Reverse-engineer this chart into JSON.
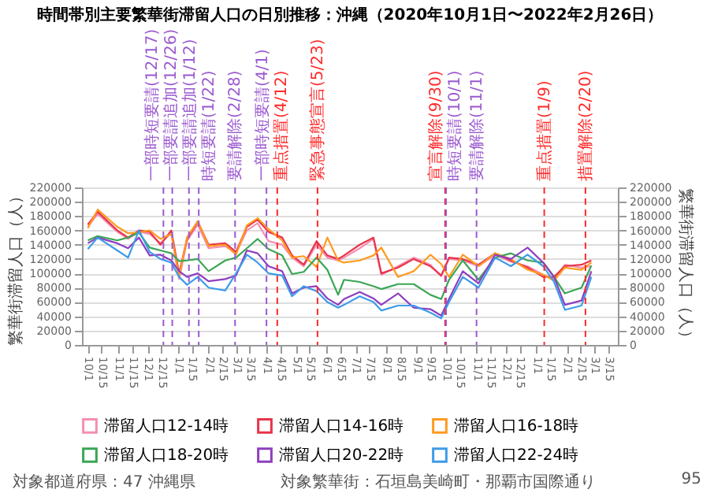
{
  "chart_data": {
    "type": "line",
    "title": "時間帯別主要繁華街滞留人口の日別推移：沖縄（2020年10月1日〜2022年2月26日）",
    "ylabel": "繁華街滞留人口（人）",
    "y2label": "繁華街滞留人口（人）",
    "x": [
      "2020-10-01",
      "2020-10-11",
      "2020-10-31",
      "2020-11-11",
      "2020-11-22",
      "2020-12-03",
      "2020-12-14",
      "2020-12-25",
      "2021-01-02",
      "2021-01-10",
      "2021-01-21",
      "2021-02-01",
      "2021-02-18",
      "2021-03-01",
      "2021-03-12",
      "2021-03-23",
      "2021-04-03",
      "2021-04-17",
      "2021-04-27",
      "2021-05-09",
      "2021-05-22",
      "2021-06-02",
      "2021-06-13",
      "2021-06-19",
      "2021-07-05",
      "2021-07-19",
      "2021-07-27",
      "2021-08-13",
      "2021-08-29",
      "2021-09-15",
      "2021-09-26",
      "2021-10-04",
      "2021-10-18",
      "2021-11-03",
      "2021-11-20",
      "2021-12-06",
      "2021-12-23",
      "2022-01-08",
      "2022-01-19",
      "2022-01-30",
      "2022-02-16",
      "2022-02-26"
    ],
    "series": [
      {
        "name": "滞留人口12-14時",
        "color": "#f48fb1",
        "values": [
          165000,
          183000,
          158000,
          148000,
          158000,
          155000,
          142000,
          156000,
          92000,
          145000,
          168000,
          135000,
          138000,
          128000,
          160000,
          170000,
          145000,
          140000,
          122000,
          110000,
          140000,
          122000,
          118000,
          122000,
          135000,
          148000,
          98000,
          110000,
          122000,
          112000,
          96000,
          120000,
          118000,
          110000,
          126000,
          116000,
          110000,
          98000,
          92000,
          112000,
          108000,
          110000
        ]
      },
      {
        "name": "滞留人口14-16時",
        "color": "#e8334a",
        "values": [
          168000,
          186000,
          160000,
          150000,
          160000,
          158000,
          140000,
          160000,
          100000,
          148000,
          172000,
          140000,
          142000,
          130000,
          165000,
          175000,
          158000,
          150000,
          125000,
          112000,
          145000,
          125000,
          120000,
          125000,
          140000,
          150000,
          100000,
          108000,
          120000,
          110000,
          97000,
          122000,
          120000,
          112000,
          128000,
          118000,
          108000,
          95000,
          95000,
          110000,
          112000,
          118000
        ]
      },
      {
        "name": "滞留人口16-18時",
        "color": "#ff9a1f",
        "values": [
          163000,
          189000,
          165000,
          156000,
          157000,
          160000,
          148000,
          155000,
          95000,
          150000,
          173000,
          138000,
          140000,
          126000,
          167000,
          177000,
          162000,
          146000,
          122000,
          124000,
          109000,
          150000,
          118000,
          115000,
          118000,
          125000,
          136000,
          95000,
          103000,
          126000,
          113000,
          95000,
          126000,
          110000,
          128000,
          120000,
          105000,
          98000,
          90000,
          108000,
          105000,
          115000
        ]
      },
      {
        "name": "滞留人口18-20時",
        "color": "#3aa655",
        "values": [
          146000,
          152000,
          146000,
          150000,
          157000,
          136000,
          132000,
          128000,
          117000,
          118000,
          120000,
          103000,
          118000,
          122000,
          135000,
          148000,
          134000,
          125000,
          99000,
          102000,
          122000,
          105000,
          70000,
          91000,
          88000,
          82000,
          78000,
          85000,
          85000,
          70000,
          64000,
          91000,
          118000,
          91000,
          122000,
          128000,
          118000,
          115000,
          95000,
          72000,
          80000,
          111000
        ]
      },
      {
        "name": "滞留人口20-22時",
        "color": "#8e3fbf",
        "values": [
          142000,
          150000,
          142000,
          135000,
          150000,
          125000,
          126000,
          118000,
          103000,
          95000,
          100000,
          89000,
          92000,
          97000,
          132000,
          128000,
          110000,
          103000,
          72000,
          80000,
          82000,
          65000,
          56000,
          64000,
          74000,
          65000,
          56000,
          72000,
          52000,
          50000,
          41000,
          64000,
          103000,
          86000,
          126000,
          120000,
          136000,
          115000,
          95000,
          56000,
          62000,
          103000
        ]
      },
      {
        "name": "滞留人口22-24時",
        "color": "#3d9be9",
        "values": [
          134000,
          150000,
          132000,
          122000,
          160000,
          130000,
          120000,
          115000,
          95000,
          84000,
          95000,
          80000,
          76000,
          100000,
          126000,
          115000,
          100000,
          97000,
          68000,
          82000,
          75000,
          60000,
          52000,
          56000,
          68000,
          60000,
          48000,
          55000,
          55000,
          45000,
          37000,
          60000,
          95000,
          80000,
          122000,
          110000,
          126000,
          110000,
          88000,
          49000,
          55000,
          95000
        ]
      }
    ],
    "xlim": [
      "2020-09-25",
      "2022-03-25"
    ],
    "xticks": [
      {
        "value": "2020-10-01",
        "label": "10/1"
      },
      {
        "value": "2020-10-15",
        "label": "10/15"
      },
      {
        "value": "2020-11-01",
        "label": "11/1"
      },
      {
        "value": "2020-11-15",
        "label": "11/15"
      },
      {
        "value": "2020-12-01",
        "label": "12/1"
      },
      {
        "value": "2020-12-15",
        "label": "12/15"
      },
      {
        "value": "2021-01-01",
        "label": "1/1"
      },
      {
        "value": "2021-01-15",
        "label": "1/15"
      },
      {
        "value": "2021-02-01",
        "label": "2/1"
      },
      {
        "value": "2021-02-15",
        "label": "2/15"
      },
      {
        "value": "2021-03-01",
        "label": "3/1"
      },
      {
        "value": "2021-03-15",
        "label": "3/15"
      },
      {
        "value": "2021-04-01",
        "label": "4/1"
      },
      {
        "value": "2021-04-15",
        "label": "4/15"
      },
      {
        "value": "2021-05-01",
        "label": "5/1"
      },
      {
        "value": "2021-05-15",
        "label": "5/15"
      },
      {
        "value": "2021-06-01",
        "label": "6/1"
      },
      {
        "value": "2021-06-15",
        "label": "6/15"
      },
      {
        "value": "2021-07-01",
        "label": "7/1"
      },
      {
        "value": "2021-07-15",
        "label": "7/15"
      },
      {
        "value": "2021-08-01",
        "label": "8/1"
      },
      {
        "value": "2021-08-15",
        "label": "8/15"
      },
      {
        "value": "2021-09-01",
        "label": "9/1"
      },
      {
        "value": "2021-09-15",
        "label": "9/15"
      },
      {
        "value": "2021-10-01",
        "label": "10/1"
      },
      {
        "value": "2021-10-15",
        "label": "10/15"
      },
      {
        "value": "2021-11-01",
        "label": "11/1"
      },
      {
        "value": "2021-11-15",
        "label": "11/15"
      },
      {
        "value": "2021-12-01",
        "label": "12/1"
      },
      {
        "value": "2021-12-15",
        "label": "12/15"
      },
      {
        "value": "2022-01-01",
        "label": "1/1"
      },
      {
        "value": "2022-01-15",
        "label": "1/15"
      },
      {
        "value": "2022-02-01",
        "label": "2/1"
      },
      {
        "value": "2022-02-15",
        "label": "2/15"
      },
      {
        "value": "2022-03-01",
        "label": "3/1"
      },
      {
        "value": "2022-03-15",
        "label": "3/15"
      }
    ],
    "ylim": [
      0,
      220000
    ],
    "yticks": [
      0,
      20000,
      40000,
      60000,
      80000,
      100000,
      120000,
      140000,
      160000,
      180000,
      200000,
      220000
    ],
    "y2lim": [
      0,
      220000
    ],
    "y2ticks": [
      0,
      20000,
      40000,
      60000,
      80000,
      100000,
      120000,
      140000,
      160000,
      180000,
      200000,
      220000
    ],
    "ref_lines": [
      {
        "axis": "x",
        "value": "2020-12-17",
        "label": "一部時短要請(12/17)",
        "color": "#9b59d0",
        "line_style": "dashed"
      },
      {
        "axis": "x",
        "value": "2020-12-26",
        "label": "一部要請追加(12/26)",
        "color": "#9b59d0",
        "line_style": "dashed"
      },
      {
        "axis": "x",
        "value": "2021-01-12",
        "label": "一部要請追加(1/12)",
        "color": "#9b59d0",
        "line_style": "dashed"
      },
      {
        "axis": "x",
        "value": "2021-01-22",
        "label": "時短要請(1/22)",
        "color": "#9b59d0",
        "line_style": "dashed"
      },
      {
        "axis": "x",
        "value": "2021-02-28",
        "label": "要請解除(2/28)",
        "color": "#9b59d0",
        "line_style": "dashed"
      },
      {
        "axis": "x",
        "value": "2021-04-01",
        "label": "一部時短要請(4/1)",
        "color": "#9b59d0",
        "line_style": "dashed"
      },
      {
        "axis": "x",
        "value": "2021-04-12",
        "label": "重点措置(4/12)",
        "color": "#ff2a2a",
        "line_style": "dashed"
      },
      {
        "axis": "x",
        "value": "2021-05-23",
        "label": "緊急事態宣言(5/23)",
        "color": "#ff2a2a",
        "line_style": "dashed"
      },
      {
        "axis": "x",
        "value": "2021-09-30",
        "label": "宣言解除(9/30)",
        "color": "#ff2a2a",
        "line_style": "dashed"
      },
      {
        "axis": "x",
        "value": "2021-10-01",
        "label": "時短要請(10/1)",
        "color": "#9b59d0",
        "line_style": "dashed"
      },
      {
        "axis": "x",
        "value": "2021-11-01",
        "label": "要請解除(11/1)",
        "color": "#9b59d0",
        "line_style": "dashed"
      },
      {
        "axis": "x",
        "value": "2022-01-09",
        "label": "重点措置(1/9)",
        "color": "#ff2a2a",
        "line_style": "dashed"
      },
      {
        "axis": "x",
        "value": "2022-02-20",
        "label": "措置解除(2/20)",
        "color": "#ff2a2a",
        "line_style": "dashed"
      }
    ],
    "grid": "y",
    "legend": "bottom",
    "marker": "none",
    "line_style": "solid",
    "annotations": [
      "対象都道府県：47 沖縄県",
      "対象繁華街：石垣島美崎町・那覇市国際通り",
      "95"
    ]
  }
}
